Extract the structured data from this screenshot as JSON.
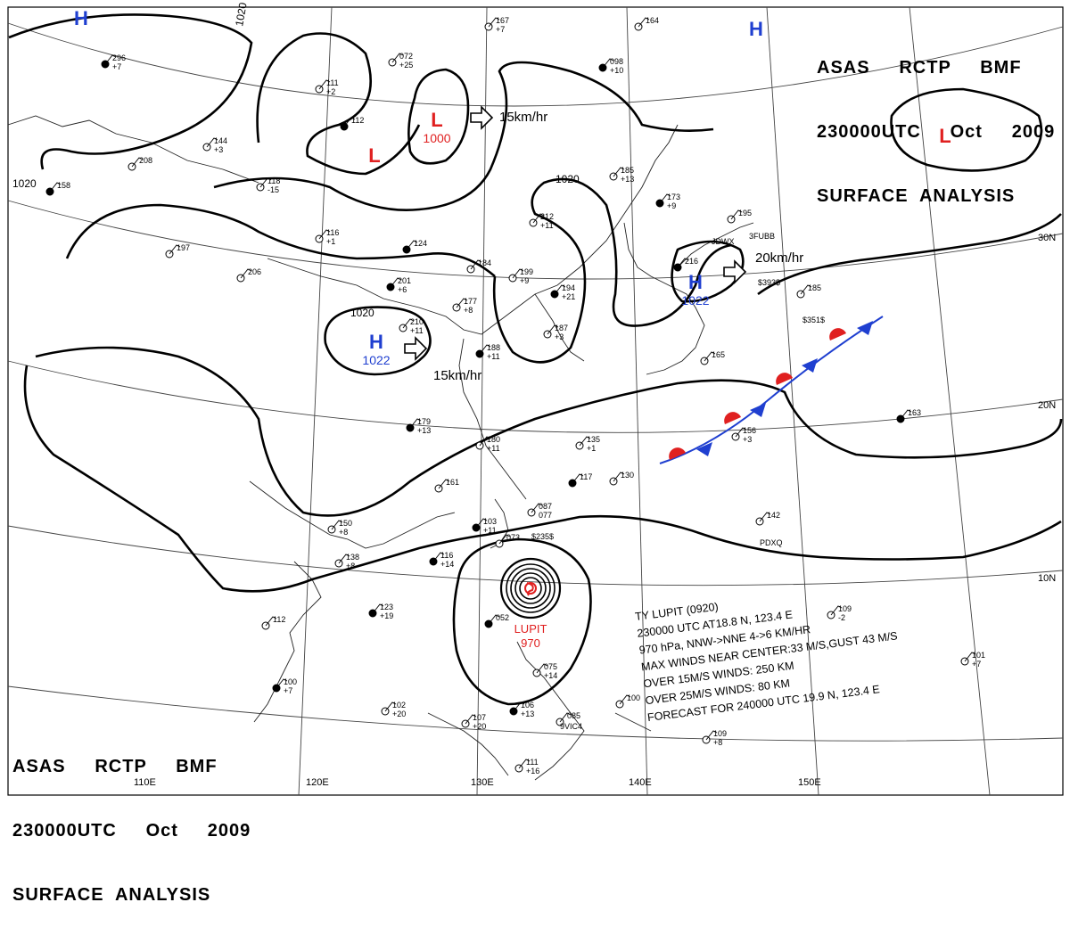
{
  "header": {
    "line1": "ASAS     RCTP     BMF",
    "line2": "230000UTC     Oct     2009",
    "line3": "SURFACE  ANALYSIS"
  },
  "longitude_labels": [
    "110E",
    "120E",
    "130E",
    "140E",
    "150E"
  ],
  "latitude_labels": [
    "30N",
    "20N",
    "10N"
  ],
  "isobars": {
    "value": "1020"
  },
  "pressure_centers": [
    {
      "type": "H",
      "value": "",
      "color": "#1f3fd0"
    },
    {
      "type": "H",
      "value": "",
      "color": "#1f3fd0"
    },
    {
      "type": "L",
      "value": "",
      "color": "#e02020"
    },
    {
      "type": "L",
      "value": "1000",
      "color": "#e02020"
    },
    {
      "type": "L",
      "value": "",
      "color": "#e02020"
    },
    {
      "type": "H",
      "value": "1022",
      "color": "#1f3fd0"
    },
    {
      "type": "H",
      "value": "1022",
      "color": "#1f3fd0"
    }
  ],
  "motion_labels": [
    "15km/hr",
    "20km/hr",
    "15km/hr"
  ],
  "typhoon": {
    "name": "LUPIT",
    "pressure": "970",
    "color": "#e02020",
    "info_lines": [
      "TY  LUPIT  (0920)",
      "230000 UTC AT18.8 N, 123.4 E",
      "970 hPa, NNW->NNE  4->6 KM/HR",
      "MAX WINDS NEAR CENTER:33 M/S,GUST 43 M/S",
      "OVER 15M/S WINDS: 250 KM",
      "OVER 25M/S WINDS: 80 KM",
      "FORECAST FOR 240000 UTC 19.9 N, 123.4 E"
    ]
  },
  "stations": [
    {
      "code": "",
      "nums": [
        "296",
        "+7"
      ]
    },
    {
      "code": "",
      "nums": [
        "144",
        "+3"
      ]
    },
    {
      "code": "",
      "nums": [
        "208"
      ]
    },
    {
      "code": "",
      "nums": [
        "158"
      ]
    },
    {
      "code": "",
      "nums": [
        "111",
        "+2"
      ]
    },
    {
      "code": "",
      "nums": [
        "072",
        "+25"
      ]
    },
    {
      "code": "",
      "nums": [
        "112"
      ]
    },
    {
      "code": "",
      "nums": [
        "167",
        "+7"
      ]
    },
    {
      "code": "",
      "nums": [
        "164"
      ]
    },
    {
      "code": "",
      "nums": [
        "098",
        "+10"
      ]
    },
    {
      "code": "",
      "nums": [
        "185",
        "+13"
      ]
    },
    {
      "code": "",
      "nums": [
        "212",
        "+11"
      ]
    },
    {
      "code": "",
      "nums": [
        "173",
        "+9"
      ]
    },
    {
      "code": "",
      "nums": [
        "195"
      ]
    },
    {
      "code": "3FUBB",
      "nums": []
    },
    {
      "code": "",
      "nums": [
        "216"
      ]
    },
    {
      "code": "$393$",
      "nums": []
    },
    {
      "code": "",
      "nums": [
        "185"
      ]
    },
    {
      "code": "$351$",
      "nums": []
    },
    {
      "code": "",
      "nums": [
        "118",
        "-15"
      ]
    },
    {
      "code": "",
      "nums": [
        "116",
        "+1"
      ]
    },
    {
      "code": "",
      "nums": [
        "124"
      ]
    },
    {
      "code": "",
      "nums": [
        "184"
      ]
    },
    {
      "code": "",
      "nums": [
        "199",
        "+9"
      ]
    },
    {
      "code": "",
      "nums": [
        "194",
        "+21"
      ]
    },
    {
      "code": "",
      "nums": [
        "187",
        "+3"
      ]
    },
    {
      "code": "",
      "nums": [
        "206"
      ]
    },
    {
      "code": "",
      "nums": [
        "201",
        "+6"
      ]
    },
    {
      "code": "",
      "nums": [
        "210",
        "+11"
      ]
    },
    {
      "code": "",
      "nums": [
        "177",
        "+8"
      ]
    },
    {
      "code": "",
      "nums": [
        "188",
        "+11"
      ]
    },
    {
      "code": "",
      "nums": [
        "165"
      ]
    },
    {
      "code": "",
      "nums": [
        "197"
      ]
    },
    {
      "code": "",
      "nums": [
        "179",
        "+13"
      ]
    },
    {
      "code": "",
      "nums": [
        "180",
        "+11"
      ]
    },
    {
      "code": "",
      "nums": [
        "135",
        "+1"
      ]
    },
    {
      "code": "",
      "nums": [
        "163"
      ]
    },
    {
      "code": "",
      "nums": [
        "156",
        "+3"
      ]
    },
    {
      "code": "",
      "nums": [
        "161"
      ]
    },
    {
      "code": "",
      "nums": [
        "117"
      ]
    },
    {
      "code": "",
      "nums": [
        "130"
      ]
    },
    {
      "code": "",
      "nums": [
        "142"
      ]
    },
    {
      "code": "PDXQ",
      "nums": []
    },
    {
      "code": "",
      "nums": [
        "087",
        "077"
      ]
    },
    {
      "code": "$235$",
      "nums": []
    },
    {
      "code": "",
      "nums": [
        "103",
        "+11"
      ]
    },
    {
      "code": "",
      "nums": [
        "150",
        "+8"
      ]
    },
    {
      "code": "",
      "nums": [
        "138",
        "+8"
      ]
    },
    {
      "code": "",
      "nums": [
        "116",
        "+14"
      ]
    },
    {
      "code": "",
      "nums": [
        "073"
      ]
    },
    {
      "code": "",
      "nums": [
        "112"
      ]
    },
    {
      "code": "",
      "nums": [
        "123",
        "+19"
      ]
    },
    {
      "code": "",
      "nums": [
        "109",
        "-2"
      ]
    },
    {
      "code": "",
      "nums": [
        "101",
        "+7"
      ]
    },
    {
      "code": "",
      "nums": [
        "100",
        "+7"
      ]
    },
    {
      "code": "",
      "nums": [
        "102",
        "+20"
      ]
    },
    {
      "code": "",
      "nums": [
        "107",
        "+20"
      ]
    },
    {
      "code": "",
      "nums": [
        "106",
        "+13"
      ]
    },
    {
      "code": "",
      "nums": [
        "075",
        "+14"
      ]
    },
    {
      "code": "",
      "nums": [
        "085"
      ]
    },
    {
      "code": "9VIC4",
      "nums": []
    },
    {
      "code": "",
      "nums": [
        "109",
        "+8"
      ]
    },
    {
      "code": "",
      "nums": [
        "111",
        "+16"
      ]
    },
    {
      "code": "",
      "nums": [
        "052"
      ]
    },
    {
      "code": "",
      "nums": [
        "100"
      ]
    },
    {
      "code": "JDWX",
      "nums": []
    }
  ],
  "colors": {
    "high": "#1f3fd0",
    "low": "#e02020",
    "front_warm": "#e02020",
    "front_cold": "#1f3fd0"
  }
}
